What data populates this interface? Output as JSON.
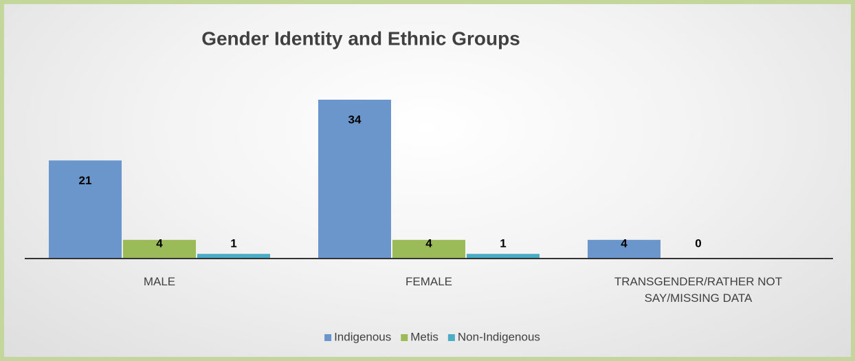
{
  "chart_data": {
    "type": "bar",
    "title": "Gender Identity and Ethnic Groups",
    "categories": [
      "MALE",
      "FEMALE",
      "TRANSGENDER/RATHER NOT SAY/MISSING DATA"
    ],
    "series": [
      {
        "name": "Indigenous",
        "color": "#6a96cb",
        "values": [
          21,
          34,
          4
        ]
      },
      {
        "name": "Metis",
        "color": "#9bbb59",
        "values": [
          4,
          4,
          0
        ]
      },
      {
        "name": "Non-Indigenous",
        "color": "#4bacc6",
        "values": [
          1,
          1,
          null
        ]
      }
    ],
    "legend": "bottom"
  }
}
